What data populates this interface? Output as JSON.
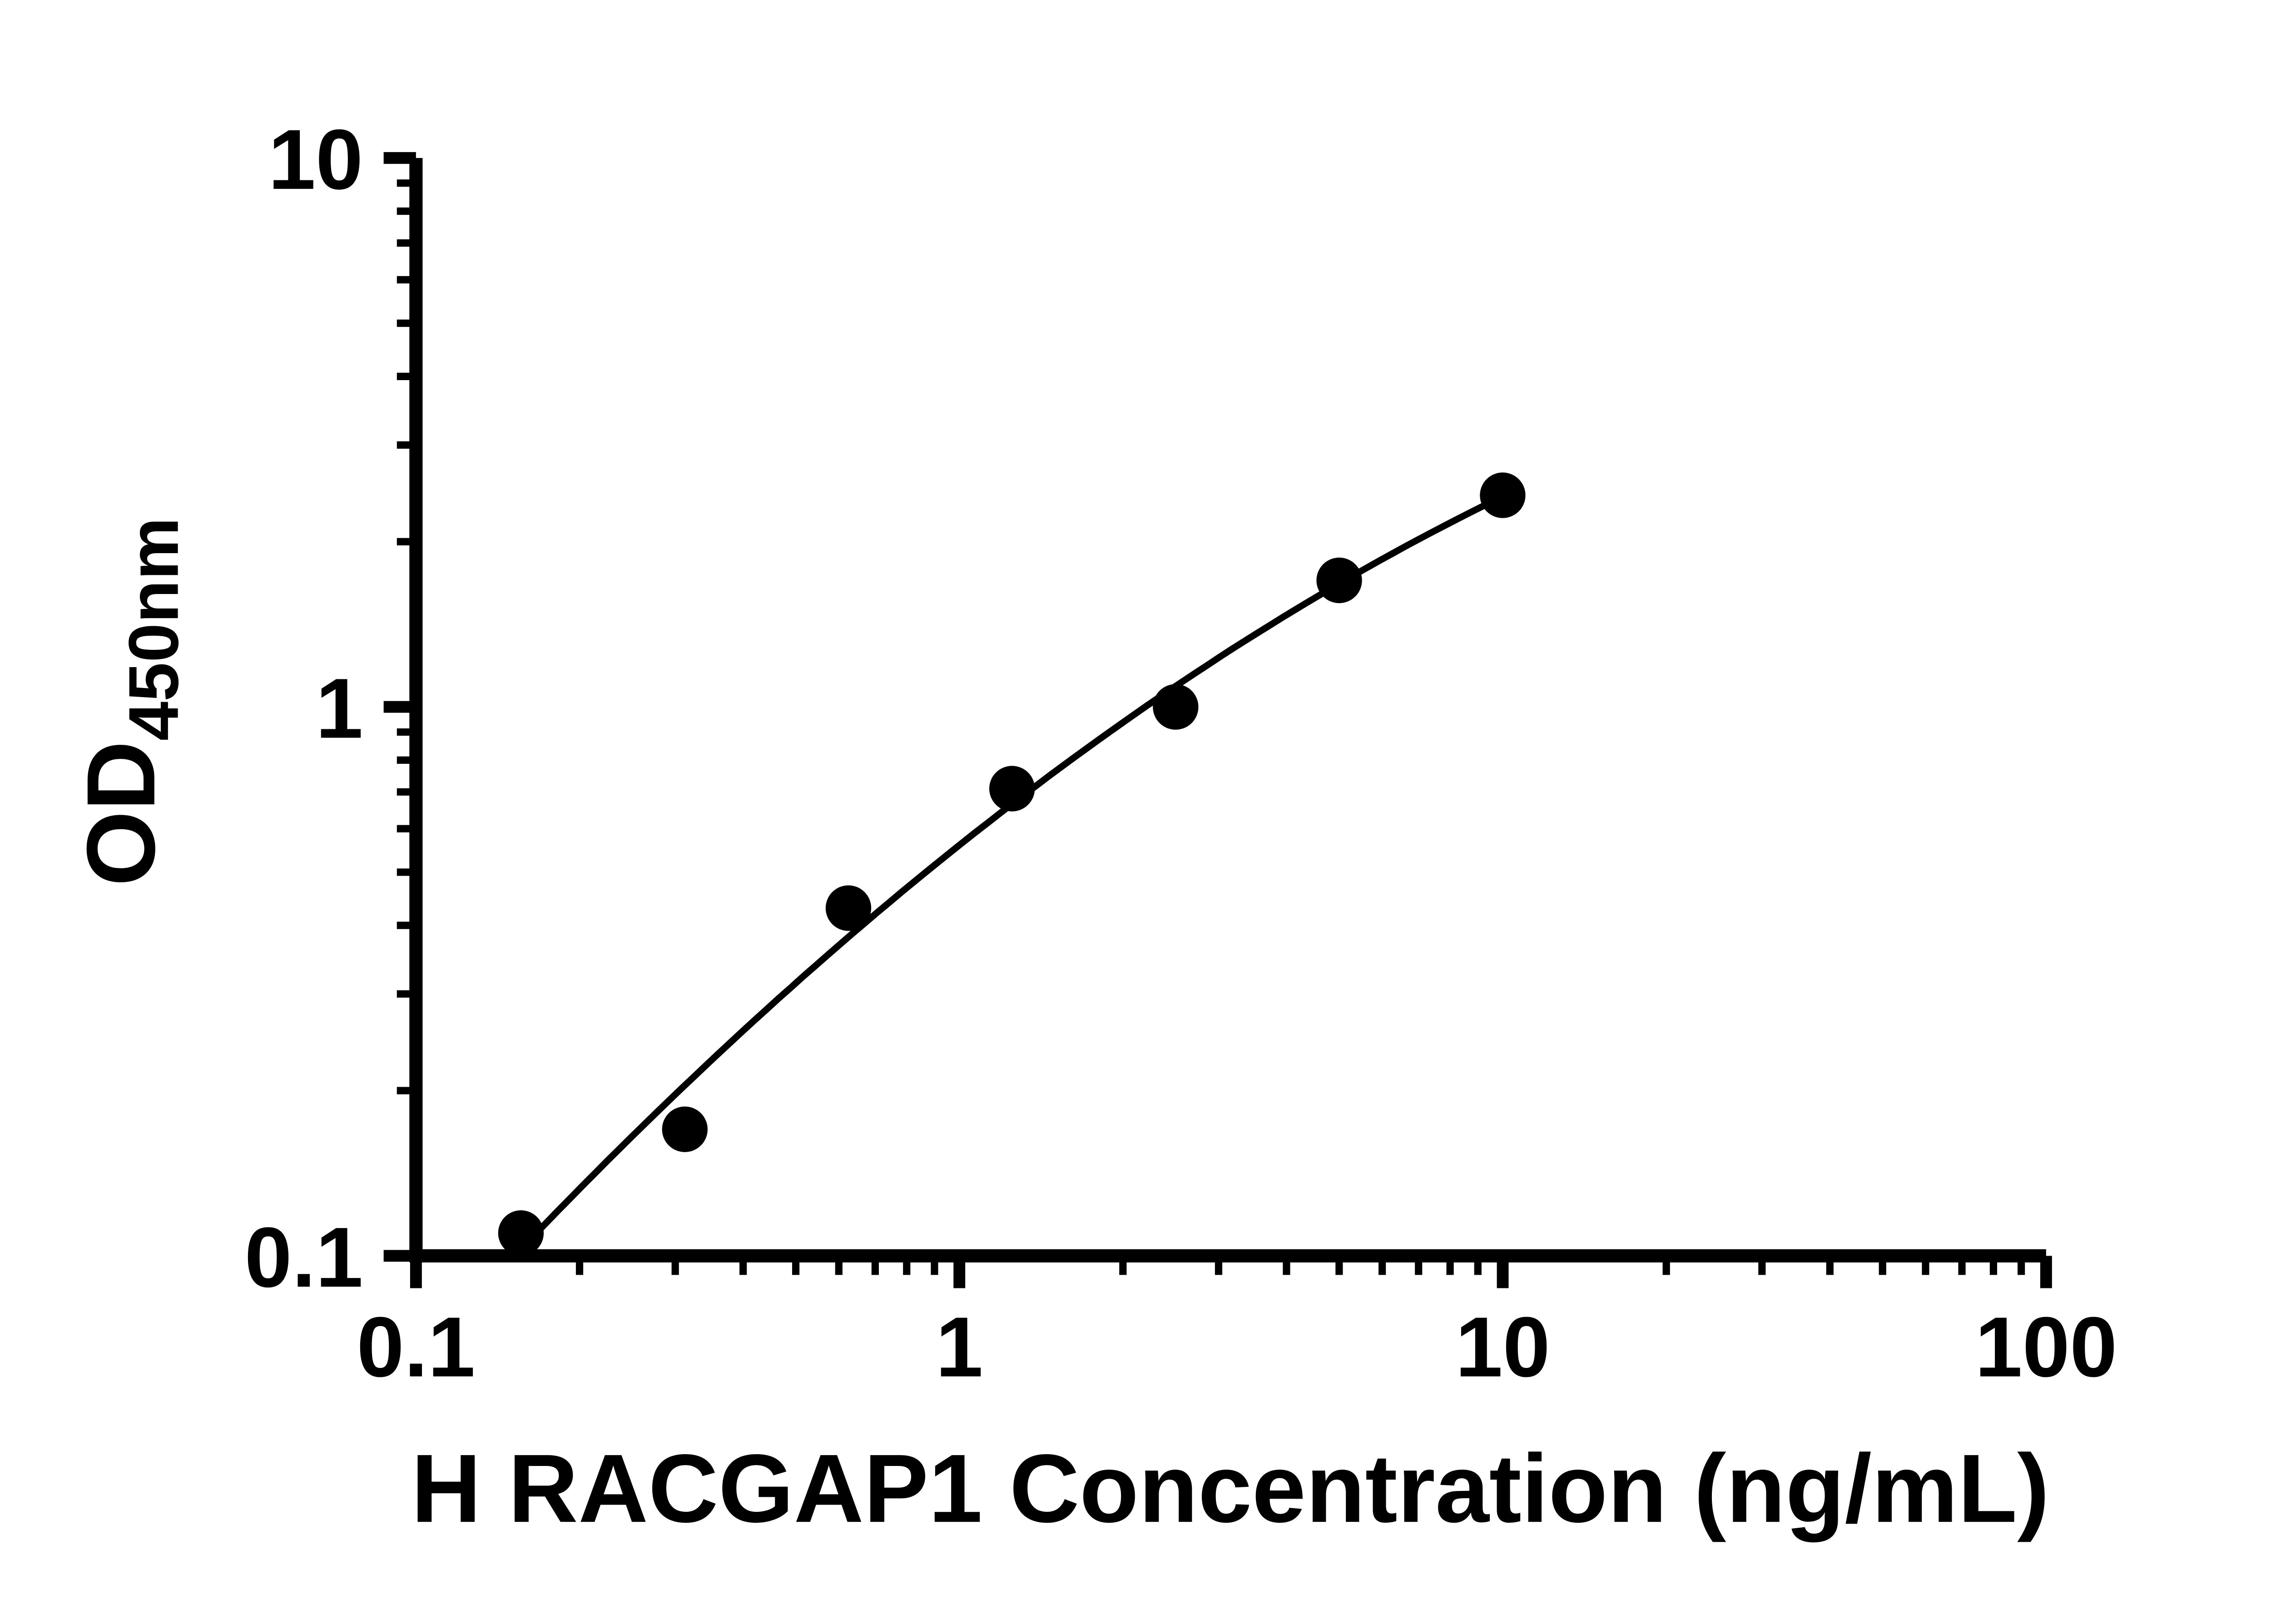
{
  "chart_data": {
    "type": "scatter",
    "title": "",
    "xlabel": "H RACGAP1 Concentration (ng/mL)",
    "ylabel": "OD450nm",
    "ylabel_parts": {
      "main": "OD",
      "subscript": "450nm"
    },
    "x_scale": "log",
    "y_scale": "log",
    "xlim": [
      0.1,
      100
    ],
    "ylim": [
      0.1,
      10
    ],
    "x_ticks": [
      0.1,
      1,
      10,
      100
    ],
    "x_tick_labels": [
      "0.1",
      "1",
      "10",
      "100"
    ],
    "y_ticks": [
      0.1,
      1,
      10
    ],
    "y_tick_labels": [
      "0.1",
      "1",
      "10"
    ],
    "minor_ticks": true,
    "grid": false,
    "legend_position": "none",
    "series": [
      {
        "marker": "filled-circle",
        "color": "#000000",
        "fit_curve_shown": true,
        "points": [
          {
            "x": 0.156,
            "y": 0.11
          },
          {
            "x": 0.3125,
            "y": 0.17
          },
          {
            "x": 0.625,
            "y": 0.43
          },
          {
            "x": 1.25,
            "y": 0.71
          },
          {
            "x": 2.5,
            "y": 1.0
          },
          {
            "x": 5,
            "y": 1.7
          },
          {
            "x": 10,
            "y": 2.43
          }
        ]
      }
    ]
  },
  "colors": {
    "background": "#ffffff",
    "axis": "#000000",
    "marker": "#000000",
    "curve": "#000000"
  }
}
